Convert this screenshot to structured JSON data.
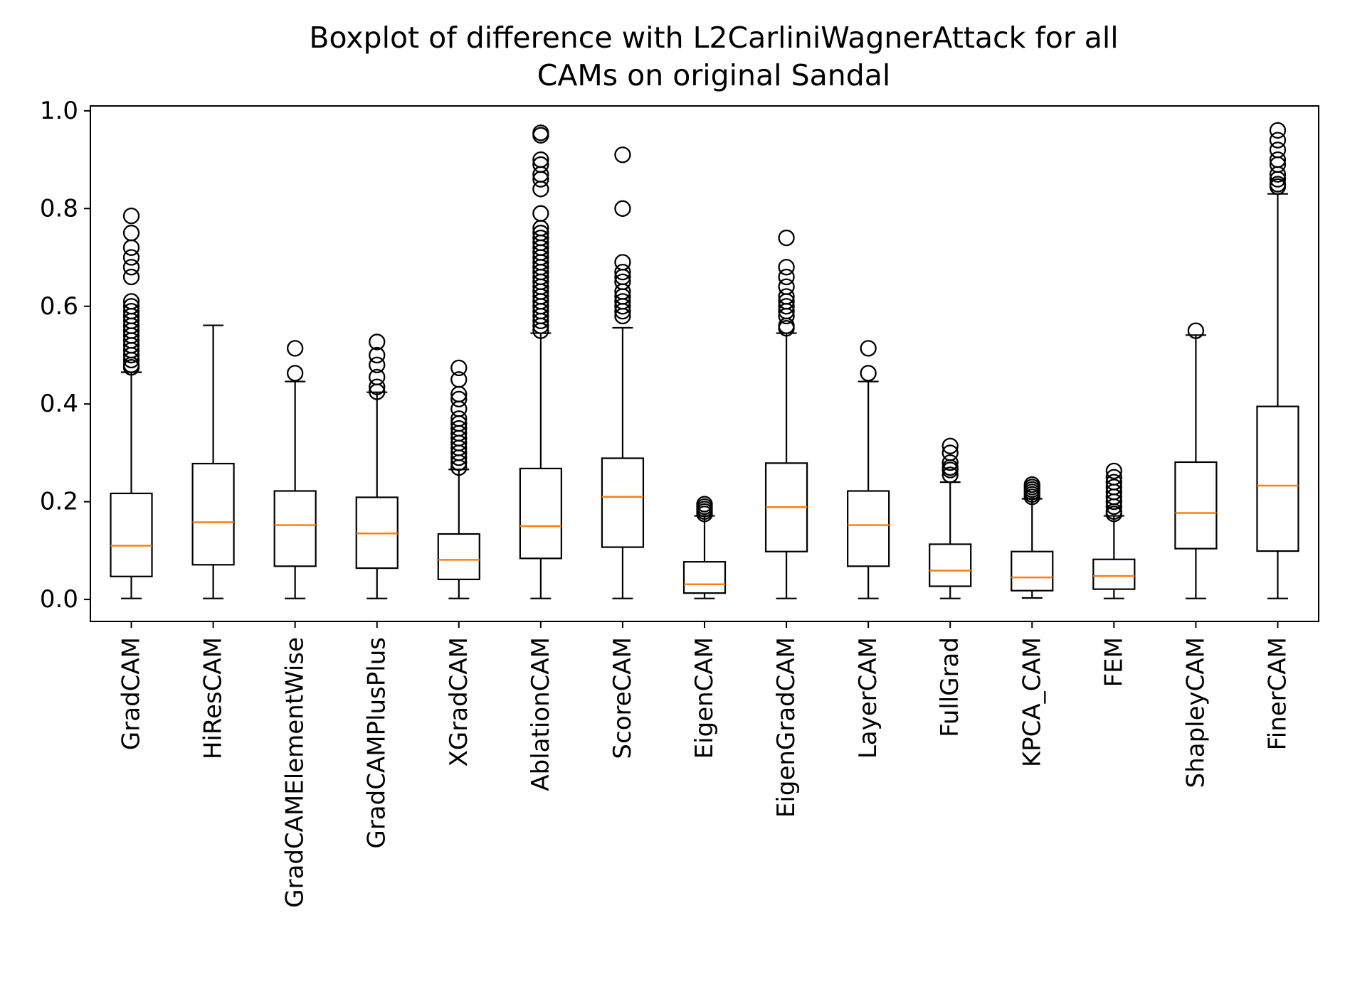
{
  "chart_data": {
    "type": "box",
    "title_line1": "Boxplot of difference with L2CarliniWagnerAttack for all",
    "title_line2": "CAMs on original Sandal",
    "xlabel": "",
    "ylabel": "",
    "ylim": [
      -0.045,
      1.01
    ],
    "yticks": [
      "0.0",
      "0.2",
      "0.4",
      "0.6",
      "0.8",
      "1.0"
    ],
    "yticks_values": [
      0.0,
      0.2,
      0.4,
      0.6,
      0.8,
      1.0
    ],
    "grid": false,
    "colors": {
      "box": "#000000",
      "median": "#ff7f0e",
      "flier": "#000000"
    },
    "series": [
      {
        "name": "GradCAM",
        "whislo": 0.002,
        "q1": 0.047,
        "med": 0.11,
        "q3": 0.217,
        "whishi": 0.465,
        "fliers": [
          0.475,
          0.48,
          0.49,
          0.5,
          0.51,
          0.52,
          0.53,
          0.54,
          0.55,
          0.56,
          0.57,
          0.58,
          0.59,
          0.6,
          0.61,
          0.66,
          0.68,
          0.7,
          0.72,
          0.75,
          0.785
        ]
      },
      {
        "name": "HiResCAM",
        "whislo": 0.002,
        "q1": 0.071,
        "med": 0.158,
        "q3": 0.278,
        "whishi": 0.561,
        "fliers": []
      },
      {
        "name": "GradCAMElementWise",
        "whislo": 0.002,
        "q1": 0.068,
        "med": 0.152,
        "q3": 0.222,
        "whishi": 0.446,
        "fliers": [
          0.463,
          0.514
        ]
      },
      {
        "name": "GradCAMPlusPlus",
        "whislo": 0.002,
        "q1": 0.064,
        "med": 0.135,
        "q3": 0.209,
        "whishi": 0.424,
        "fliers": [
          0.425,
          0.435,
          0.455,
          0.48,
          0.5,
          0.527
        ]
      },
      {
        "name": "XGradCAM",
        "whislo": 0.002,
        "q1": 0.041,
        "med": 0.081,
        "q3": 0.134,
        "whishi": 0.266,
        "fliers": [
          0.27,
          0.28,
          0.29,
          0.3,
          0.31,
          0.32,
          0.33,
          0.34,
          0.35,
          0.36,
          0.37,
          0.39,
          0.41,
          0.42,
          0.45,
          0.474
        ]
      },
      {
        "name": "AblationCAM",
        "whislo": 0.002,
        "q1": 0.084,
        "med": 0.15,
        "q3": 0.268,
        "whishi": 0.545,
        "fliers": [
          0.55,
          0.56,
          0.57,
          0.58,
          0.59,
          0.6,
          0.61,
          0.62,
          0.63,
          0.64,
          0.65,
          0.66,
          0.67,
          0.68,
          0.69,
          0.7,
          0.71,
          0.72,
          0.73,
          0.74,
          0.75,
          0.76,
          0.79,
          0.84,
          0.86,
          0.87,
          0.89,
          0.9,
          0.95,
          0.955
        ]
      },
      {
        "name": "ScoreCAM",
        "whislo": 0.002,
        "q1": 0.107,
        "med": 0.21,
        "q3": 0.289,
        "whishi": 0.556,
        "fliers": [
          0.58,
          0.59,
          0.6,
          0.61,
          0.62,
          0.63,
          0.65,
          0.66,
          0.67,
          0.69,
          0.8,
          0.91
        ]
      },
      {
        "name": "EigenCAM",
        "whislo": 0.002,
        "q1": 0.013,
        "med": 0.031,
        "q3": 0.077,
        "whishi": 0.171,
        "fliers": [
          0.175,
          0.18,
          0.185,
          0.19,
          0.195
        ]
      },
      {
        "name": "EigenGradCAM",
        "whislo": 0.002,
        "q1": 0.098,
        "med": 0.189,
        "q3": 0.279,
        "whishi": 0.545,
        "fliers": [
          0.555,
          0.56,
          0.58,
          0.59,
          0.6,
          0.61,
          0.62,
          0.64,
          0.66,
          0.68,
          0.74
        ]
      },
      {
        "name": "LayerCAM",
        "whislo": 0.002,
        "q1": 0.068,
        "med": 0.152,
        "q3": 0.222,
        "whishi": 0.446,
        "fliers": [
          0.463,
          0.514
        ]
      },
      {
        "name": "FullGrad",
        "whislo": 0.002,
        "q1": 0.027,
        "med": 0.059,
        "q3": 0.113,
        "whishi": 0.24,
        "fliers": [
          0.255,
          0.265,
          0.27,
          0.28,
          0.3,
          0.314
        ]
      },
      {
        "name": "KPCA_CAM",
        "whislo": 0.003,
        "q1": 0.018,
        "med": 0.045,
        "q3": 0.098,
        "whishi": 0.206,
        "fliers": [
          0.21,
          0.215,
          0.22,
          0.225,
          0.23,
          0.235
        ]
      },
      {
        "name": "FEM",
        "whislo": 0.002,
        "q1": 0.021,
        "med": 0.048,
        "q3": 0.082,
        "whishi": 0.171,
        "fliers": [
          0.175,
          0.18,
          0.19,
          0.2,
          0.21,
          0.22,
          0.23,
          0.24,
          0.25,
          0.263
        ]
      },
      {
        "name": "ShapleyCAM",
        "whislo": 0.002,
        "q1": 0.104,
        "med": 0.177,
        "q3": 0.281,
        "whishi": 0.541,
        "fliers": [
          0.55
        ]
      },
      {
        "name": "FinerCAM",
        "whislo": 0.002,
        "q1": 0.099,
        "med": 0.233,
        "q3": 0.395,
        "whishi": 0.83,
        "fliers": [
          0.845,
          0.85,
          0.86,
          0.87,
          0.89,
          0.9,
          0.92,
          0.94,
          0.96
        ]
      }
    ]
  }
}
